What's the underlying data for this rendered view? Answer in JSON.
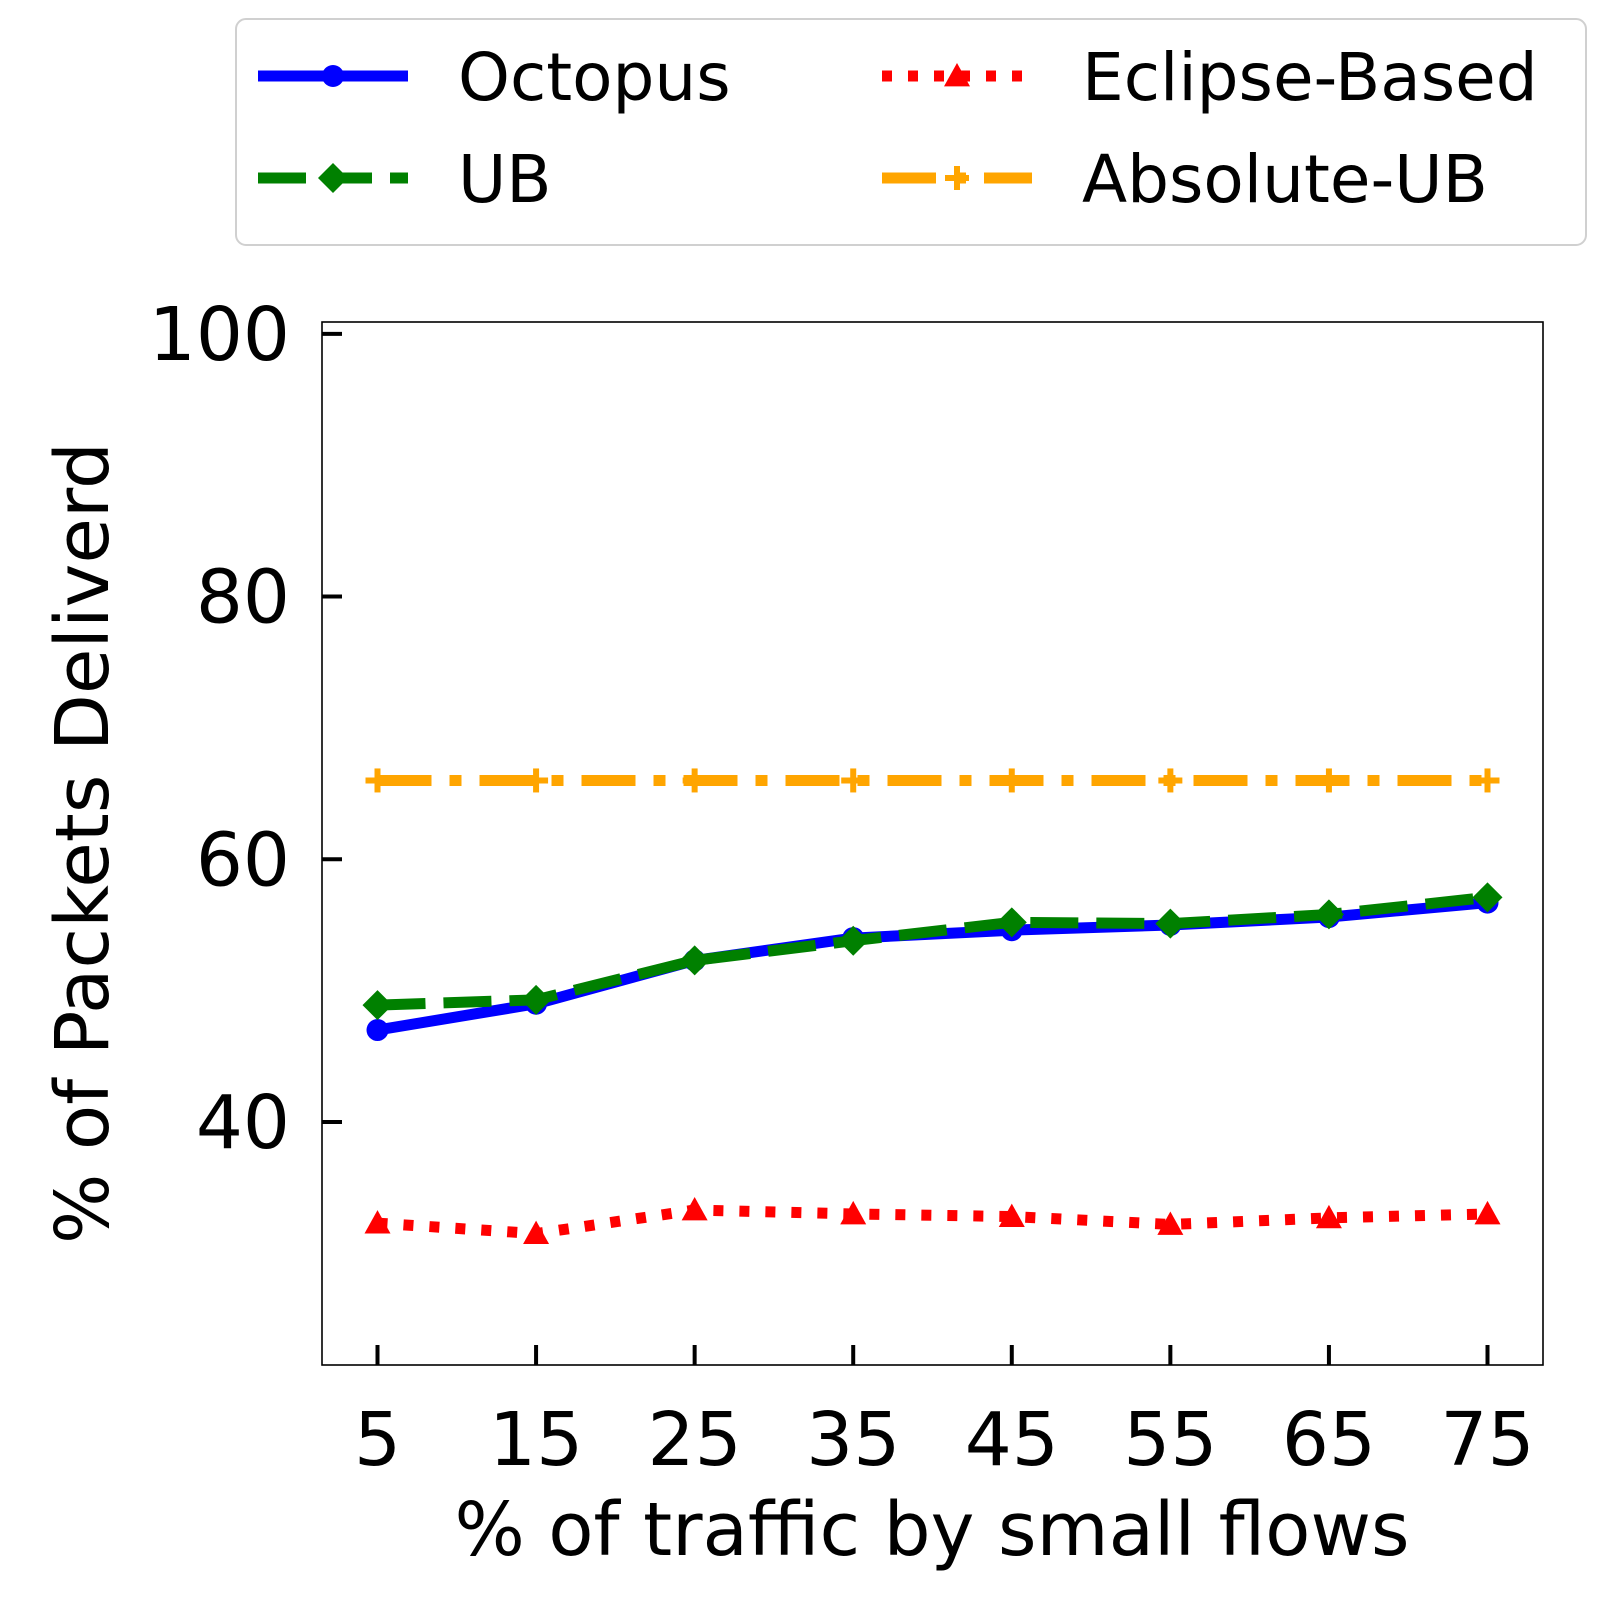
{
  "chart_data": {
    "type": "line",
    "title": "",
    "xlabel": "% of traffic by small flows",
    "ylabel": "% of Packets Deliverd",
    "x": [
      5,
      15,
      25,
      35,
      45,
      55,
      65,
      75
    ],
    "xticks": [
      "5",
      "15",
      "25",
      "35",
      "45",
      "55",
      "65",
      "75"
    ],
    "yticks": [
      40,
      60,
      80,
      100
    ],
    "ytick_labels": [
      "40",
      "60",
      "80",
      "100"
    ],
    "xlim": [
      1.5,
      78.5
    ],
    "ylim": [
      21.5,
      100.9
    ],
    "grid": false,
    "legend_position": "top",
    "series": [
      {
        "name": "Octopus",
        "color": "#0000ff",
        "style": "solid",
        "marker": "circle",
        "values": [
          47.0,
          49.0,
          52.3,
          54.0,
          54.6,
          55.0,
          55.6,
          56.7
        ]
      },
      {
        "name": "UB",
        "color": "#008000",
        "style": "dashed",
        "marker": "diamond",
        "values": [
          48.9,
          49.3,
          52.3,
          53.8,
          55.2,
          55.1,
          55.8,
          57.1
        ]
      },
      {
        "name": "Eclipse-Based",
        "color": "#ff0000",
        "style": "dotted",
        "marker": "triangle",
        "values": [
          32.3,
          31.5,
          33.3,
          33.0,
          32.8,
          32.2,
          32.7,
          33.0
        ]
      },
      {
        "name": "Absolute-UB",
        "color": "#ffa500",
        "style": "dashdot",
        "marker": "plus",
        "values": [
          66.0,
          66.0,
          66.0,
          66.0,
          66.0,
          66.0,
          66.0,
          66.0
        ]
      }
    ]
  }
}
